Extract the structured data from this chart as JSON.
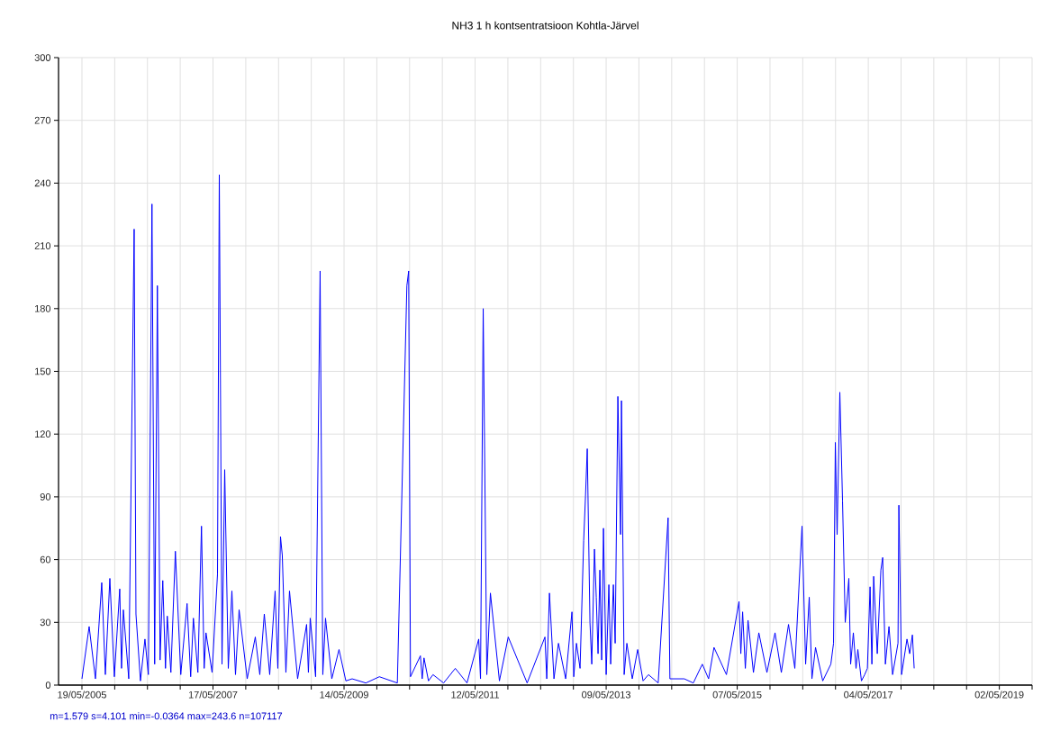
{
  "chart_data": {
    "type": "line",
    "title": "NH3 1 h kontsentratsioon Kohtla-Järvel",
    "annotations": [
      "m=1.579 s=4.101 min=-0.0364 max=243.6 n=107117"
    ],
    "grid": true,
    "marker": "none",
    "xlim": [
      "2005-01-09",
      "2019-10-31"
    ],
    "ylim": [
      0,
      300
    ],
    "yticks": [
      0,
      30,
      60,
      90,
      120,
      150,
      180,
      210,
      240,
      270,
      300
    ],
    "xticks": [
      {
        "value": "2005-05-19",
        "label": "19/05/2005"
      },
      {
        "value": "2005-11-17",
        "label": null
      },
      {
        "value": "2006-05-18",
        "label": null
      },
      {
        "value": "2006-11-16",
        "label": null
      },
      {
        "value": "2007-05-17",
        "label": "17/05/2007"
      },
      {
        "value": "2007-11-15",
        "label": null
      },
      {
        "value": "2008-05-15",
        "label": null
      },
      {
        "value": "2008-11-13",
        "label": null
      },
      {
        "value": "2009-05-14",
        "label": "14/05/2009"
      },
      {
        "value": "2009-11-12",
        "label": null
      },
      {
        "value": "2010-05-13",
        "label": null
      },
      {
        "value": "2010-11-11",
        "label": null
      },
      {
        "value": "2011-05-12",
        "label": "12/05/2011"
      },
      {
        "value": "2011-11-10",
        "label": null
      },
      {
        "value": "2012-05-10",
        "label": null
      },
      {
        "value": "2012-11-08",
        "label": null
      },
      {
        "value": "2013-05-09",
        "label": "09/05/2013"
      },
      {
        "value": "2013-11-07",
        "label": null
      },
      {
        "value": "2014-05-08",
        "label": null
      },
      {
        "value": "2014-11-06",
        "label": null
      },
      {
        "value": "2015-05-07",
        "label": "07/05/2015"
      },
      {
        "value": "2015-11-05",
        "label": null
      },
      {
        "value": "2016-05-05",
        "label": null
      },
      {
        "value": "2016-11-03",
        "label": null
      },
      {
        "value": "2017-05-04",
        "label": "04/05/2017"
      },
      {
        "value": "2017-11-02",
        "label": null
      },
      {
        "value": "2018-05-03",
        "label": null
      },
      {
        "value": "2018-11-01",
        "label": null
      },
      {
        "value": "2019-05-02",
        "label": "02/05/2019"
      },
      {
        "value": "2019-10-31",
        "label": null
      }
    ],
    "series": [
      {
        "color": "#0000ff",
        "x": [
          "2005-05-19",
          "2005-06-28",
          "2005-08-02",
          "2005-09-06",
          "2005-09-26",
          "2005-10-21",
          "2005-11-15",
          "2005-12-15",
          "2005-12-25",
          "2006-01-04",
          "2006-02-03",
          "2006-03-05",
          "2006-03-15",
          "2006-04-09",
          "2006-05-04",
          "2006-05-23",
          "2006-06-12",
          "2006-06-27",
          "2006-07-12",
          "2006-07-27",
          "2006-08-11",
          "2006-08-26",
          "2006-09-05",
          "2006-09-25",
          "2006-10-20",
          "2006-11-19",
          "2006-12-24",
          "2007-01-13",
          "2007-01-28",
          "2007-02-22",
          "2007-03-14",
          "2007-03-29",
          "2007-04-08",
          "2007-05-12",
          "2007-06-11",
          "2007-06-21",
          "2007-07-06",
          "2007-07-21",
          "2007-08-10",
          "2007-08-30",
          "2007-09-19",
          "2007-10-09",
          "2007-11-23",
          "2008-01-07",
          "2008-02-01",
          "2008-02-26",
          "2008-03-27",
          "2008-04-26",
          "2008-05-11",
          "2008-05-26",
          "2008-06-05",
          "2008-06-25",
          "2008-07-15",
          "2008-08-29",
          "2008-10-18",
          "2008-10-28",
          "2008-11-07",
          "2008-12-07",
          "2009-01-01",
          "2009-01-16",
          "2009-01-31",
          "2009-03-07",
          "2009-04-16",
          "2009-05-24",
          "2009-06-28",
          "2009-09-12",
          "2009-11-26",
          "2010-03-06",
          "2010-04-28",
          "2010-05-08",
          "2010-05-18",
          "2010-07-12",
          "2010-07-22",
          "2010-08-01",
          "2010-08-26",
          "2010-09-20",
          "2010-11-18",
          "2011-01-22",
          "2011-03-28",
          "2011-06-01",
          "2011-06-11",
          "2011-06-26",
          "2011-07-16",
          "2011-08-05",
          "2011-09-24",
          "2011-11-12",
          "2012-02-25",
          "2012-06-03",
          "2012-06-13",
          "2012-06-28",
          "2012-07-23",
          "2012-08-17",
          "2012-09-26",
          "2012-10-31",
          "2012-11-10",
          "2012-11-25",
          "2012-12-15",
          "2013-01-04",
          "2013-01-14",
          "2013-01-24",
          "2013-02-08",
          "2013-02-18",
          "2013-03-05",
          "2013-03-15",
          "2013-03-25",
          "2013-04-04",
          "2013-04-14",
          "2013-04-24",
          "2013-05-09",
          "2013-05-24",
          "2013-06-03",
          "2013-06-18",
          "2013-06-28",
          "2013-07-13",
          "2013-07-28",
          "2013-08-02",
          "2013-08-17",
          "2013-09-01",
          "2013-10-01",
          "2013-10-31",
          "2013-11-30",
          "2013-12-30",
          "2014-02-22",
          "2014-04-18",
          "2014-04-28",
          "2014-07-17",
          "2014-09-05",
          "2014-10-25",
          "2014-11-29",
          "2014-12-29",
          "2015-03-08",
          "2015-05-17",
          "2015-05-27",
          "2015-06-06",
          "2015-06-21",
          "2015-07-06",
          "2015-08-05",
          "2015-09-04",
          "2015-10-19",
          "2015-12-03",
          "2016-01-07",
          "2016-02-16",
          "2016-03-22",
          "2016-05-01",
          "2016-05-21",
          "2016-06-10",
          "2016-06-25",
          "2016-07-15",
          "2016-08-24",
          "2016-10-08",
          "2016-10-23",
          "2016-11-02",
          "2016-11-12",
          "2016-11-27",
          "2016-12-12",
          "2016-12-27",
          "2017-01-16",
          "2017-01-26",
          "2017-02-10",
          "2017-02-25",
          "2017-03-07",
          "2017-03-27",
          "2017-04-14",
          "2017-04-29",
          "2017-05-14",
          "2017-05-24",
          "2017-06-03",
          "2017-06-23",
          "2017-07-13",
          "2017-07-23",
          "2017-08-07",
          "2017-08-27",
          "2017-09-16",
          "2017-10-16",
          "2017-10-21",
          "2017-11-05",
          "2017-12-05",
          "2017-12-20",
          "2018-01-04",
          "2018-01-14"
        ],
        "values": [
          3,
          28,
          3,
          49,
          5,
          51,
          4,
          46,
          8,
          36,
          3,
          218,
          34,
          2,
          22,
          5,
          230,
          10,
          191,
          12,
          50,
          8,
          33,
          6,
          64,
          5,
          39,
          4,
          32,
          6,
          76,
          8,
          25,
          6,
          53,
          244,
          10,
          103,
          8,
          45,
          5,
          36,
          3,
          23,
          5,
          34,
          5,
          45,
          8,
          71,
          62,
          6,
          45,
          3,
          29,
          6,
          32,
          4,
          198,
          5,
          32,
          3,
          17,
          2,
          3,
          1,
          4,
          1,
          191,
          198,
          4,
          14,
          3,
          13,
          2,
          5,
          1,
          8,
          1,
          22,
          3,
          180,
          5,
          44,
          2,
          23,
          1,
          23,
          3,
          44,
          3,
          20,
          3,
          35,
          4,
          20,
          8,
          69,
          90,
          113,
          30,
          10,
          65,
          42,
          15,
          55,
          12,
          75,
          5,
          48,
          10,
          48,
          20,
          138,
          72,
          136,
          5,
          20,
          3,
          17,
          2,
          5,
          1,
          80,
          3,
          3,
          1,
          10,
          3,
          18,
          5,
          40,
          15,
          35,
          8,
          31,
          6,
          25,
          6,
          25,
          6,
          29,
          8,
          76,
          10,
          42,
          3,
          18,
          2,
          10,
          20,
          116,
          72,
          140,
          88,
          30,
          51,
          10,
          25,
          8,
          17,
          2,
          5,
          8,
          47,
          10,
          52,
          15,
          55,
          61,
          10,
          28,
          5,
          20,
          86,
          5,
          22,
          15,
          24,
          8
        ]
      }
    ]
  }
}
